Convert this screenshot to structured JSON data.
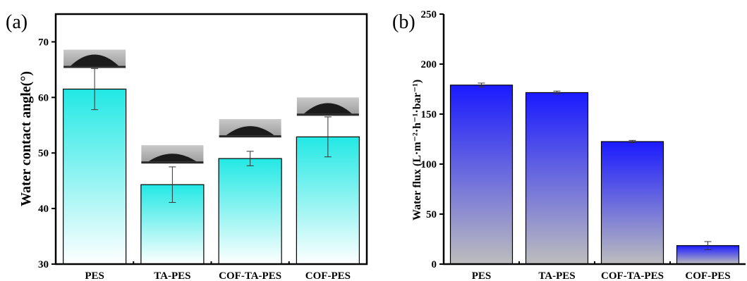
{
  "chart_data": [
    {
      "panel": "(a)",
      "type": "bar",
      "categories": [
        "PES",
        "TA-PES",
        "COF-TA-PES",
        "COF-PES"
      ],
      "values": [
        61.5,
        44.3,
        49.0,
        52.9
      ],
      "errors": [
        3.7,
        3.2,
        1.3,
        3.6
      ],
      "title": "",
      "xlabel": "",
      "ylabel": "Water contact angle(°)",
      "ylim": [
        30,
        75
      ],
      "yticks": [
        30,
        40,
        50,
        60,
        70
      ],
      "bar_gradient": [
        "#ffffff",
        "#22e8e4"
      ],
      "inset_images": [
        "water-droplet-image"
      ]
    },
    {
      "panel": "(b)",
      "type": "bar",
      "categories": [
        "PES",
        "TA-PES",
        "COF-TA-PES",
        "COF-PES"
      ],
      "values": [
        179,
        171.5,
        122.5,
        18.5
      ],
      "errors": [
        2,
        1.5,
        1.2,
        4.0
      ],
      "title": "",
      "xlabel": "",
      "ylabel": "Water flux (L·m⁻²·h⁻¹·bar⁻¹)",
      "ylim": [
        0,
        250
      ],
      "yticks": [
        0,
        50,
        100,
        150,
        200,
        250
      ],
      "bar_gradient": [
        "#bdbdbd",
        "#1a1aff"
      ]
    }
  ]
}
